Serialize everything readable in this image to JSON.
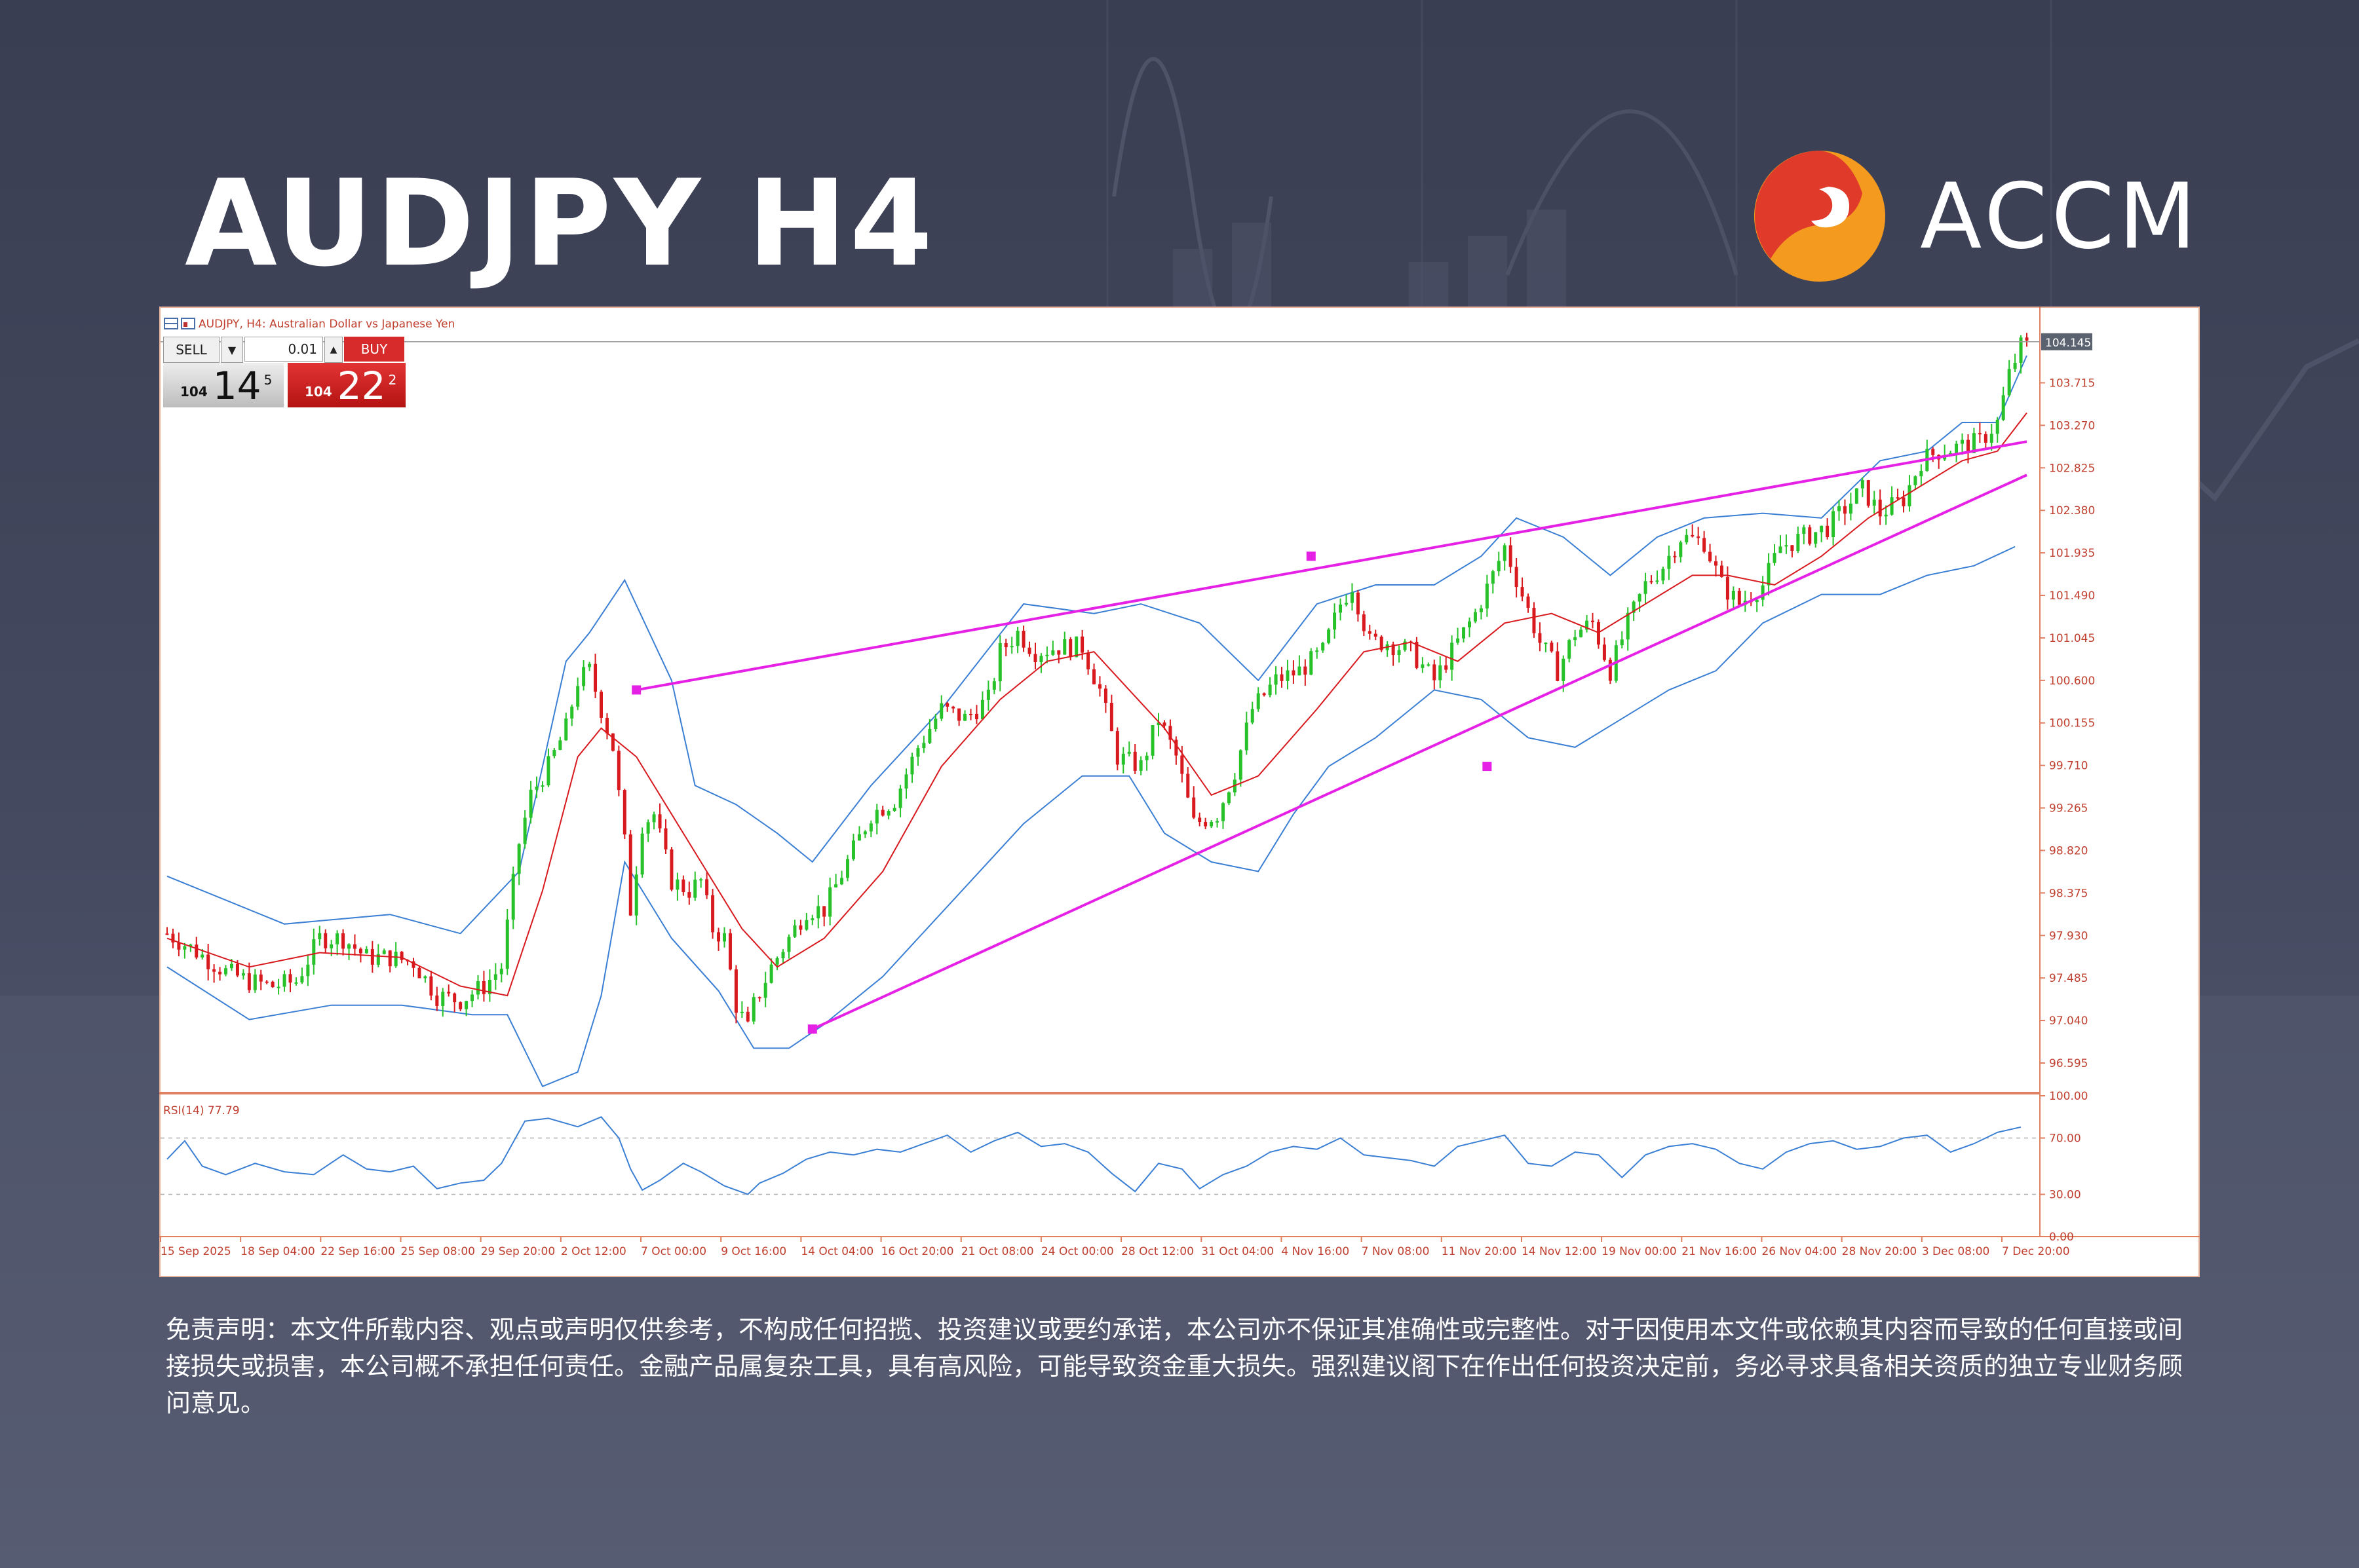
{
  "page": {
    "title": "AUDJPY H4",
    "brand": "ACCM",
    "disclaimer": "免责声明：本文件所载内容、观点或声明仅供参考，不构成任何招揽、投资建议或要约承诺，本公司亦不保证其准确性或完整性。对于因使用本文件或依赖其内容而导致的任何直接或间接损失或损害，本公司概不承担任何责任。金融产品属复杂工具，具有高风险，可能导致资金重大损失。强烈建议阁下在作出任何投资决定前，务必寻求具备相关资质的独立专业财务顾问意见。",
    "colors": {
      "background": "#40445a",
      "bull_candle": "#27c22a",
      "bear_candle": "#d8191e",
      "bollinger": "#3a7fd4",
      "moving_average": "#d8191e",
      "trendline": "#e521e6",
      "rsi_line": "#3a7fd4",
      "logo_red": "#e03a2a",
      "logo_orange": "#f39a1f"
    }
  },
  "terminal": {
    "header_text": "AUDJPY, H4:  Australian Dollar vs Japanese Yen",
    "sell_label": "SELL",
    "buy_label": "BUY",
    "lot_value": "0.01",
    "sell_price": {
      "big": "104",
      "main": "14",
      "sup": "5"
    },
    "buy_price": {
      "big": "104",
      "main": "22",
      "sup": "2"
    },
    "current_price_tag": "104.145",
    "icons": [
      "chart-grid-icon",
      "chart-window-icon",
      "dropdown-arrow-icon",
      "spin-up-icon"
    ]
  },
  "chart_data": {
    "type": "candlestick",
    "symbol": "AUDJPY",
    "timeframe": "H4",
    "ylim": [
      96.3,
      104.5
    ],
    "y_ticks": [
      "104.145",
      "103.715",
      "103.270",
      "102.825",
      "102.380",
      "101.935",
      "101.490",
      "101.045",
      "100.600",
      "100.155",
      "99.710",
      "99.265",
      "98.820",
      "98.375",
      "97.930",
      "97.485",
      "97.040",
      "96.595"
    ],
    "x_ticks": [
      "15 Sep 2025",
      "18 Sep 04:00",
      "22 Sep 16:00",
      "25 Sep 08:00",
      "29 Sep 20:00",
      "2 Oct 12:00",
      "7 Oct 00:00",
      "9 Oct 16:00",
      "14 Oct 04:00",
      "16 Oct 20:00",
      "21 Oct 08:00",
      "24 Oct 00:00",
      "28 Oct 12:00",
      "31 Oct 04:00",
      "4 Nov 16:00",
      "7 Nov 08:00",
      "11 Nov 20:00",
      "14 Nov 12:00",
      "19 Nov 00:00",
      "21 Nov 16:00",
      "26 Nov 04:00",
      "28 Nov 20:00",
      "3 Dec 08:00",
      "7 Dec 20:00"
    ],
    "price_path": [
      [
        0,
        97.95
      ],
      [
        4,
        97.8
      ],
      [
        10,
        97.55
      ],
      [
        14,
        97.45
      ],
      [
        18,
        97.4
      ],
      [
        22,
        97.45
      ],
      [
        26,
        97.9
      ],
      [
        30,
        97.9
      ],
      [
        34,
        97.7
      ],
      [
        38,
        97.7
      ],
      [
        42,
        97.65
      ],
      [
        46,
        97.3
      ],
      [
        50,
        97.25
      ],
      [
        54,
        97.4
      ],
      [
        57,
        97.6
      ],
      [
        60,
        98.9
      ],
      [
        62,
        99.4
      ],
      [
        65,
        99.7
      ],
      [
        68,
        100.1
      ],
      [
        70,
        100.6
      ],
      [
        72,
        100.7
      ],
      [
        74,
        100.3
      ],
      [
        76,
        99.9
      ],
      [
        78,
        98.9
      ],
      [
        79,
        98.2
      ],
      [
        81,
        99.1
      ],
      [
        83,
        99.2
      ],
      [
        86,
        98.5
      ],
      [
        89,
        98.4
      ],
      [
        91,
        98.5
      ],
      [
        93,
        98.0
      ],
      [
        95,
        97.9
      ],
      [
        97,
        97.2
      ],
      [
        99,
        96.95
      ],
      [
        100,
        97.2
      ],
      [
        103,
        97.6
      ],
      [
        106,
        97.9
      ],
      [
        109,
        98.2
      ],
      [
        112,
        98.2
      ],
      [
        116,
        98.7
      ],
      [
        120,
        99.2
      ],
      [
        124,
        99.35
      ],
      [
        128,
        99.9
      ],
      [
        132,
        100.3
      ],
      [
        136,
        100.2
      ],
      [
        140,
        100.4
      ],
      [
        142,
        100.9
      ],
      [
        145,
        101.1
      ],
      [
        148,
        100.9
      ],
      [
        152,
        100.95
      ],
      [
        156,
        100.95
      ],
      [
        159,
        100.5
      ],
      [
        162,
        99.8
      ],
      [
        166,
        99.7
      ],
      [
        169,
        100.2
      ],
      [
        172,
        99.8
      ],
      [
        175,
        99.1
      ],
      [
        179,
        99.2
      ],
      [
        182,
        99.65
      ],
      [
        185,
        100.3
      ],
      [
        189,
        100.6
      ],
      [
        193,
        100.7
      ],
      [
        197,
        100.9
      ],
      [
        200,
        101.4
      ],
      [
        202,
        101.6
      ],
      [
        205,
        101.0
      ],
      [
        208,
        101.0
      ],
      [
        212,
        100.9
      ],
      [
        216,
        100.6
      ],
      [
        220,
        101.0
      ],
      [
        223,
        101.3
      ],
      [
        226,
        101.7
      ],
      [
        228,
        102.0
      ],
      [
        231,
        101.5
      ],
      [
        234,
        101.0
      ],
      [
        237,
        100.7
      ],
      [
        240,
        101.1
      ],
      [
        243,
        101.2
      ],
      [
        246,
        100.7
      ],
      [
        249,
        101.2
      ],
      [
        252,
        101.6
      ],
      [
        255,
        101.8
      ],
      [
        258,
        102.1
      ],
      [
        262,
        102.05
      ],
      [
        265,
        101.6
      ],
      [
        268,
        101.4
      ],
      [
        272,
        101.6
      ],
      [
        275,
        102.0
      ],
      [
        279,
        102.1
      ],
      [
        283,
        102.2
      ],
      [
        286,
        102.4
      ],
      [
        289,
        102.6
      ],
      [
        292,
        102.35
      ],
      [
        296,
        102.5
      ],
      [
        299,
        102.9
      ],
      [
        302,
        103.0
      ],
      [
        306,
        103.05
      ],
      [
        309,
        103.1
      ],
      [
        312,
        103.3
      ],
      [
        314,
        103.8
      ],
      [
        316,
        104.1
      ]
    ],
    "bollinger_bands": {
      "upper": [
        [
          0,
          98.55
        ],
        [
          20,
          98.05
        ],
        [
          38,
          98.15
        ],
        [
          50,
          97.95
        ],
        [
          60,
          98.6
        ],
        [
          68,
          100.8
        ],
        [
          72,
          101.1
        ],
        [
          78,
          101.65
        ],
        [
          86,
          100.6
        ],
        [
          90,
          99.5
        ],
        [
          97,
          99.3
        ],
        [
          104,
          99.0
        ],
        [
          110,
          98.7
        ],
        [
          120,
          99.5
        ],
        [
          132,
          100.3
        ],
        [
          146,
          101.4
        ],
        [
          158,
          101.3
        ],
        [
          166,
          101.4
        ],
        [
          176,
          101.2
        ],
        [
          186,
          100.6
        ],
        [
          196,
          101.4
        ],
        [
          206,
          101.6
        ],
        [
          216,
          101.6
        ],
        [
          224,
          101.9
        ],
        [
          230,
          102.3
        ],
        [
          238,
          102.1
        ],
        [
          246,
          101.7
        ],
        [
          254,
          102.1
        ],
        [
          262,
          102.3
        ],
        [
          272,
          102.35
        ],
        [
          282,
          102.3
        ],
        [
          292,
          102.9
        ],
        [
          300,
          103.0
        ],
        [
          306,
          103.3
        ],
        [
          312,
          103.3
        ],
        [
          317,
          104.0
        ]
      ],
      "lower": [
        [
          0,
          97.6
        ],
        [
          14,
          97.05
        ],
        [
          28,
          97.2
        ],
        [
          40,
          97.2
        ],
        [
          52,
          97.1
        ],
        [
          58,
          97.1
        ],
        [
          64,
          96.35
        ],
        [
          70,
          96.5
        ],
        [
          74,
          97.3
        ],
        [
          78,
          98.7
        ],
        [
          86,
          97.9
        ],
        [
          94,
          97.35
        ],
        [
          100,
          96.75
        ],
        [
          106,
          96.75
        ],
        [
          112,
          97.0
        ],
        [
          122,
          97.5
        ],
        [
          134,
          98.3
        ],
        [
          146,
          99.1
        ],
        [
          156,
          99.6
        ],
        [
          164,
          99.6
        ],
        [
          170,
          99.0
        ],
        [
          178,
          98.7
        ],
        [
          186,
          98.6
        ],
        [
          192,
          99.2
        ],
        [
          198,
          99.7
        ],
        [
          206,
          100.0
        ],
        [
          216,
          100.5
        ],
        [
          224,
          100.4
        ],
        [
          232,
          100.0
        ],
        [
          240,
          99.9
        ],
        [
          248,
          100.2
        ],
        [
          256,
          100.5
        ],
        [
          264,
          100.7
        ],
        [
          272,
          101.2
        ],
        [
          282,
          101.5
        ],
        [
          292,
          101.5
        ],
        [
          300,
          101.7
        ],
        [
          308,
          101.8
        ],
        [
          315,
          102.0
        ]
      ]
    },
    "moving_average": [
      [
        0,
        97.9
      ],
      [
        14,
        97.6
      ],
      [
        26,
        97.75
      ],
      [
        40,
        97.7
      ],
      [
        50,
        97.4
      ],
      [
        58,
        97.3
      ],
      [
        64,
        98.4
      ],
      [
        70,
        99.8
      ],
      [
        74,
        100.1
      ],
      [
        80,
        99.8
      ],
      [
        90,
        98.8
      ],
      [
        98,
        98.0
      ],
      [
        104,
        97.6
      ],
      [
        112,
        97.9
      ],
      [
        122,
        98.6
      ],
      [
        132,
        99.7
      ],
      [
        142,
        100.4
      ],
      [
        150,
        100.8
      ],
      [
        158,
        100.9
      ],
      [
        164,
        100.5
      ],
      [
        170,
        100.1
      ],
      [
        178,
        99.4
      ],
      [
        186,
        99.6
      ],
      [
        196,
        100.3
      ],
      [
        204,
        100.9
      ],
      [
        212,
        101.0
      ],
      [
        220,
        100.8
      ],
      [
        228,
        101.2
      ],
      [
        236,
        101.3
      ],
      [
        244,
        101.1
      ],
      [
        252,
        101.4
      ],
      [
        260,
        101.7
      ],
      [
        266,
        101.7
      ],
      [
        274,
        101.6
      ],
      [
        282,
        101.9
      ],
      [
        290,
        102.3
      ],
      [
        298,
        102.6
      ],
      [
        306,
        102.9
      ],
      [
        312,
        103.0
      ],
      [
        317,
        103.4
      ]
    ],
    "trendlines": [
      {
        "points": [
          [
            80,
            100.5
          ],
          [
            317,
            103.1
          ]
        ],
        "anchors": [
          [
            80,
            100.5
          ],
          [
            195,
            101.9
          ]
        ]
      },
      {
        "points": [
          [
            110,
            96.95
          ],
          [
            317,
            102.75
          ]
        ],
        "anchors": [
          [
            110,
            96.95
          ],
          [
            225,
            99.7
          ]
        ]
      }
    ],
    "rsi": {
      "label": "RSI(14) 77.79",
      "value": 77.79,
      "ylim": [
        0,
        100
      ],
      "y_ticks": [
        "100.00",
        "70.00",
        "30.00",
        "0.00"
      ],
      "levels": [
        70,
        30
      ],
      "series": [
        [
          0,
          55
        ],
        [
          3,
          68
        ],
        [
          6,
          50
        ],
        [
          10,
          44
        ],
        [
          15,
          52
        ],
        [
          20,
          46
        ],
        [
          25,
          44
        ],
        [
          30,
          58
        ],
        [
          34,
          48
        ],
        [
          38,
          46
        ],
        [
          42,
          50
        ],
        [
          46,
          34
        ],
        [
          50,
          38
        ],
        [
          54,
          40
        ],
        [
          57,
          52
        ],
        [
          61,
          82
        ],
        [
          65,
          84
        ],
        [
          70,
          78
        ],
        [
          74,
          85
        ],
        [
          77,
          70
        ],
        [
          79,
          48
        ],
        [
          81,
          33
        ],
        [
          84,
          40
        ],
        [
          88,
          52
        ],
        [
          91,
          46
        ],
        [
          95,
          36
        ],
        [
          99,
          30
        ],
        [
          101,
          38
        ],
        [
          105,
          45
        ],
        [
          109,
          55
        ],
        [
          113,
          60
        ],
        [
          117,
          58
        ],
        [
          121,
          62
        ],
        [
          125,
          60
        ],
        [
          129,
          66
        ],
        [
          133,
          72
        ],
        [
          137,
          60
        ],
        [
          141,
          68
        ],
        [
          145,
          74
        ],
        [
          149,
          64
        ],
        [
          153,
          66
        ],
        [
          157,
          60
        ],
        [
          161,
          45
        ],
        [
          165,
          32
        ],
        [
          169,
          52
        ],
        [
          173,
          48
        ],
        [
          176,
          34
        ],
        [
          180,
          44
        ],
        [
          184,
          50
        ],
        [
          188,
          60
        ],
        [
          192,
          64
        ],
        [
          196,
          62
        ],
        [
          200,
          70
        ],
        [
          204,
          58
        ],
        [
          208,
          56
        ],
        [
          212,
          54
        ],
        [
          216,
          50
        ],
        [
          220,
          64
        ],
        [
          224,
          68
        ],
        [
          228,
          72
        ],
        [
          232,
          52
        ],
        [
          236,
          50
        ],
        [
          240,
          60
        ],
        [
          244,
          58
        ],
        [
          248,
          42
        ],
        [
          252,
          58
        ],
        [
          256,
          64
        ],
        [
          260,
          66
        ],
        [
          264,
          62
        ],
        [
          268,
          52
        ],
        [
          272,
          48
        ],
        [
          276,
          60
        ],
        [
          280,
          66
        ],
        [
          284,
          68
        ],
        [
          288,
          62
        ],
        [
          292,
          64
        ],
        [
          296,
          70
        ],
        [
          300,
          72
        ],
        [
          304,
          60
        ],
        [
          308,
          66
        ],
        [
          312,
          74
        ],
        [
          316,
          77.79
        ]
      ]
    }
  }
}
